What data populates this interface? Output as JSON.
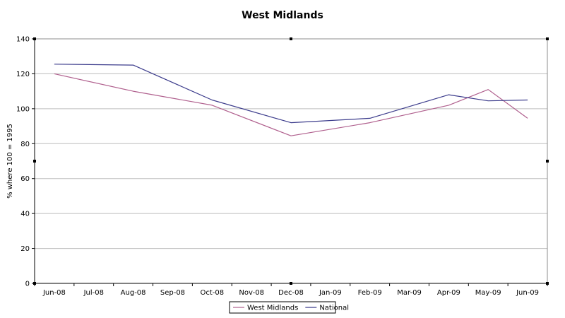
{
  "chart_data": {
    "type": "line",
    "title": "West Midlands",
    "xlabel": "",
    "ylabel": "% where 100 = 1995",
    "categories": [
      "Jun-08",
      "Jul-08",
      "Aug-08",
      "Sep-08",
      "Oct-08",
      "Nov-08",
      "Dec-08",
      "Jan-09",
      "Feb-09",
      "Mar-09",
      "Apr-09",
      "May-09",
      "Jun-09"
    ],
    "series": [
      {
        "name": "West Midlands",
        "color": "#b0608e",
        "points": [
          {
            "x": "Jun-08",
            "y": 120
          },
          {
            "x": "Aug-08",
            "y": 110
          },
          {
            "x": "Oct-08",
            "y": 102
          },
          {
            "x": "Dec-08",
            "y": 84.5
          },
          {
            "x": "Feb-09",
            "y": 92
          },
          {
            "x": "Apr-09",
            "y": 102
          },
          {
            "x": "May-09",
            "y": 111
          },
          {
            "x": "Jun-09",
            "y": 94.5
          }
        ]
      },
      {
        "name": "National",
        "color": "#3c3c8c",
        "points": [
          {
            "x": "Jun-08",
            "y": 125.5
          },
          {
            "x": "Aug-08",
            "y": 125
          },
          {
            "x": "Oct-08",
            "y": 105
          },
          {
            "x": "Dec-08",
            "y": 92
          },
          {
            "x": "Feb-09",
            "y": 94.5
          },
          {
            "x": "Apr-09",
            "y": 108
          },
          {
            "x": "May-09",
            "y": 104.5
          },
          {
            "x": "Jun-09",
            "y": 105
          }
        ]
      }
    ],
    "ylim": [
      0,
      140
    ],
    "yticks": [
      0,
      20,
      40,
      60,
      80,
      100,
      120,
      140
    ],
    "grid": true,
    "legend": "bottom"
  }
}
